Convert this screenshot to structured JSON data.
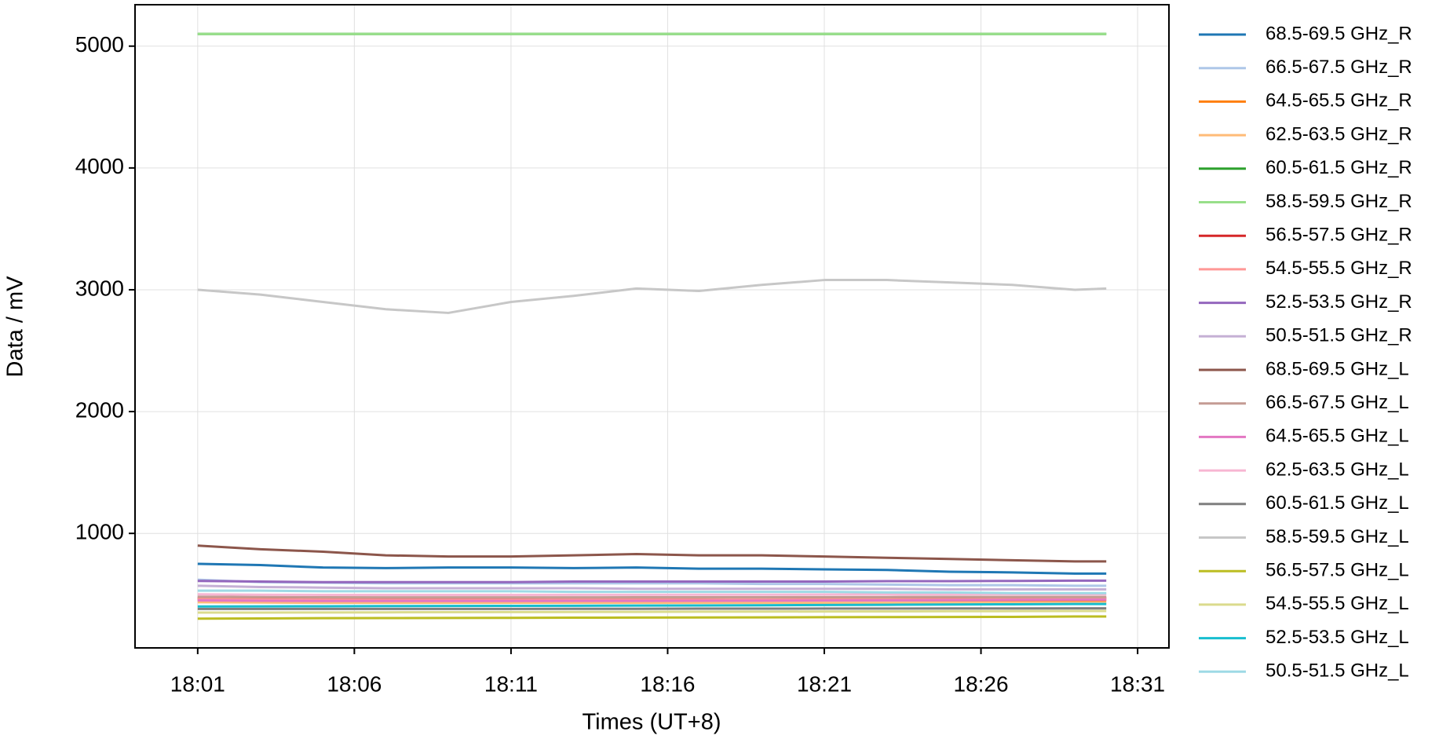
{
  "chart_data": {
    "type": "line",
    "x_label": "Times (UT+8)",
    "y_label": "Data / mV",
    "x": [
      "18:01",
      "18:03",
      "18:05",
      "18:07",
      "18:09",
      "18:11",
      "18:13",
      "18:15",
      "18:17",
      "18:19",
      "18:21",
      "18:23",
      "18:25",
      "18:27",
      "18:29",
      "18:30"
    ],
    "xlim": [
      "17:59",
      "18:32"
    ],
    "xticks": [
      "18:01",
      "18:06",
      "18:11",
      "18:16",
      "18:21",
      "18:26",
      "18:31"
    ],
    "ylim": [
      60,
      5340
    ],
    "yticks": [
      1000,
      2000,
      3000,
      4000,
      5000
    ],
    "grid": true,
    "legend": "outside right",
    "series": [
      {
        "name": "68.5-69.5 GHz_R",
        "color": "#1f77b4",
        "values": [
          750,
          740,
          720,
          715,
          720,
          720,
          715,
          720,
          710,
          710,
          705,
          700,
          685,
          680,
          670,
          670
        ]
      },
      {
        "name": "66.5-67.5 GHz_R",
        "color": "#aec7e8",
        "values": [
          620,
          600,
          595,
          590,
          590,
          590,
          590,
          590,
          590,
          585,
          585,
          580,
          575,
          575,
          570,
          570
        ]
      },
      {
        "name": "64.5-65.5 GHz_R",
        "color": "#ff7f0e",
        "values": [
          455,
          452,
          450,
          450,
          450,
          450,
          450,
          450,
          450,
          450,
          450,
          450,
          450,
          450,
          450,
          450
        ]
      },
      {
        "name": "62.5-63.5 GHz_R",
        "color": "#ffbb78",
        "values": [
          435,
          432,
          430,
          430,
          430,
          430,
          430,
          430,
          430,
          430,
          430,
          430,
          430,
          430,
          430,
          430
        ]
      },
      {
        "name": "60.5-61.5 GHz_R",
        "color": "#2ca02c",
        "values": [
          5100,
          5100,
          5100,
          5100,
          5100,
          5100,
          5100,
          5100,
          5100,
          5100,
          5100,
          5100,
          5100,
          5100,
          5100,
          5100
        ]
      },
      {
        "name": "58.5-59.5 GHz_R",
        "color": "#98df8a",
        "values": [
          5100,
          5100,
          5100,
          5100,
          5100,
          5100,
          5100,
          5100,
          5100,
          5100,
          5100,
          5100,
          5100,
          5100,
          5100,
          5100
        ]
      },
      {
        "name": "56.5-57.5 GHz_R",
        "color": "#d62728",
        "values": [
          470,
          468,
          466,
          465,
          465,
          465,
          466,
          466,
          466,
          467,
          467,
          468,
          468,
          469,
          470,
          470
        ]
      },
      {
        "name": "54.5-55.5 GHz_R",
        "color": "#ff9896",
        "values": [
          460,
          458,
          456,
          455,
          455,
          455,
          456,
          456,
          456,
          457,
          457,
          458,
          458,
          459,
          460,
          460
        ]
      },
      {
        "name": "52.5-53.5 GHz_R",
        "color": "#9467bd",
        "values": [
          610,
          605,
          600,
          600,
          600,
          600,
          605,
          605,
          605,
          605,
          605,
          608,
          608,
          610,
          612,
          612
        ]
      },
      {
        "name": "50.5-51.5 GHz_R",
        "color": "#c5b0d5",
        "values": [
          570,
          560,
          555,
          550,
          550,
          550,
          550,
          545,
          545,
          545,
          545,
          545,
          540,
          540,
          540,
          540
        ]
      },
      {
        "name": "68.5-69.5 GHz_L",
        "color": "#8c564b",
        "values": [
          900,
          870,
          850,
          820,
          810,
          810,
          820,
          830,
          820,
          820,
          810,
          800,
          790,
          780,
          770,
          770
        ]
      },
      {
        "name": "66.5-67.5 GHz_L",
        "color": "#c49c94",
        "values": [
          480,
          478,
          476,
          475,
          475,
          475,
          475,
          476,
          476,
          476,
          477,
          477,
          478,
          478,
          478,
          478
        ]
      },
      {
        "name": "64.5-65.5 GHz_L",
        "color": "#e377c2",
        "values": [
          450,
          447,
          445,
          445,
          445,
          445,
          446,
          446,
          447,
          448,
          449,
          450,
          452,
          453,
          455,
          455
        ]
      },
      {
        "name": "62.5-63.5 GHz_L",
        "color": "#f7b6d2",
        "values": [
          500,
          497,
          495,
          495,
          495,
          495,
          496,
          496,
          497,
          497,
          498,
          498,
          499,
          500,
          500,
          500
        ]
      },
      {
        "name": "60.5-61.5 GHz_L",
        "color": "#7f7f7f",
        "values": [
          380,
          380,
          380,
          380,
          380,
          380,
          381,
          381,
          382,
          382,
          383,
          383,
          384,
          384,
          385,
          385
        ]
      },
      {
        "name": "58.5-59.5 GHz_L",
        "color": "#c7c7c7",
        "values": [
          3000,
          2960,
          2900,
          2840,
          2810,
          2900,
          2950,
          3010,
          2990,
          3040,
          3080,
          3080,
          3060,
          3040,
          3000,
          3010
        ]
      },
      {
        "name": "56.5-57.5 GHz_L",
        "color": "#bcbd22",
        "values": [
          300,
          302,
          304,
          305,
          306,
          307,
          308,
          309,
          310,
          311,
          312,
          313,
          314,
          315,
          318,
          318
        ]
      },
      {
        "name": "54.5-55.5 GHz_L",
        "color": "#dbdb8d",
        "values": [
          350,
          350,
          351,
          352,
          353,
          354,
          355,
          356,
          357,
          358,
          359,
          360,
          361,
          362,
          363,
          363
        ]
      },
      {
        "name": "52.5-53.5 GHz_L",
        "color": "#17becf",
        "values": [
          400,
          401,
          402,
          403,
          404,
          405,
          406,
          407,
          408,
          410,
          412,
          414,
          416,
          418,
          420,
          420
        ]
      },
      {
        "name": "50.5-51.5 GHz_L",
        "color": "#9edae5",
        "values": [
          530,
          530,
          525,
          525,
          525,
          525,
          520,
          520,
          520,
          520,
          520,
          515,
          515,
          510,
          510,
          510
        ]
      }
    ]
  }
}
